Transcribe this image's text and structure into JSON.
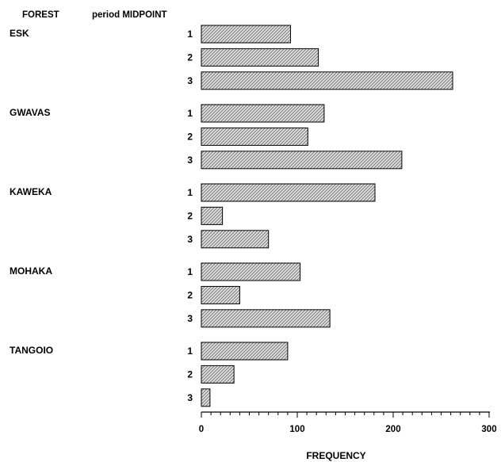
{
  "chart_data": {
    "type": "bar",
    "orientation": "horizontal",
    "group_header": "FOREST",
    "category_header": "period MIDPOINT",
    "xlabel": "FREQUENCY",
    "xlim": [
      0,
      300
    ],
    "xticks": [
      "0",
      "100",
      "200",
      "300"
    ],
    "groups": [
      {
        "name": "ESK",
        "bars": [
          {
            "period": "1",
            "value": 93
          },
          {
            "period": "2",
            "value": 122
          },
          {
            "period": "3",
            "value": 262
          }
        ]
      },
      {
        "name": "GWAVAS",
        "bars": [
          {
            "period": "1",
            "value": 128
          },
          {
            "period": "2",
            "value": 111
          },
          {
            "period": "3",
            "value": 209
          }
        ]
      },
      {
        "name": "KAWEKA",
        "bars": [
          {
            "period": "1",
            "value": 181
          },
          {
            "period": "2",
            "value": 22
          },
          {
            "period": "3",
            "value": 70
          }
        ]
      },
      {
        "name": "MOHAKA",
        "bars": [
          {
            "period": "1",
            "value": 103
          },
          {
            "period": "2",
            "value": 40
          },
          {
            "period": "3",
            "value": 134
          }
        ]
      },
      {
        "name": "TANGOIO",
        "bars": [
          {
            "period": "1",
            "value": 90
          },
          {
            "period": "2",
            "value": 34
          },
          {
            "period": "3",
            "value": 9
          }
        ]
      }
    ]
  }
}
